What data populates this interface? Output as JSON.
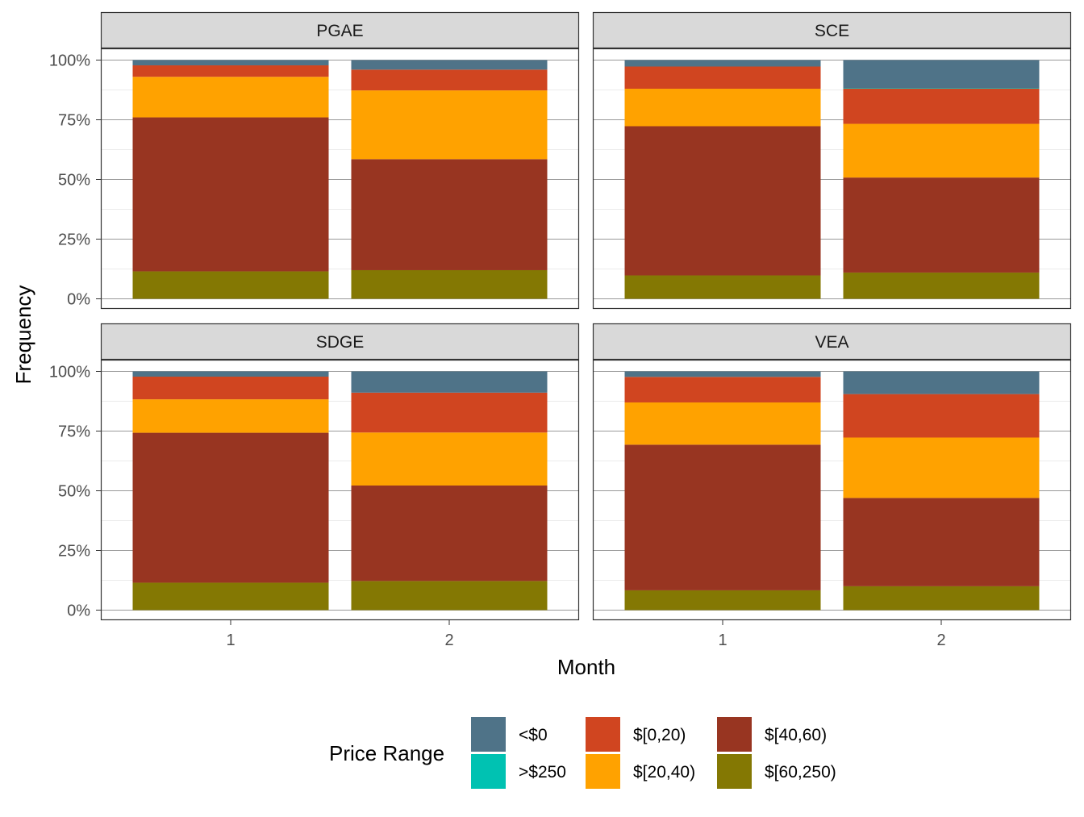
{
  "chart_data": {
    "type": "bar",
    "stacked": true,
    "facet_layout": "2x2 grid",
    "ylabel": "Frequency",
    "xlabel": "Month",
    "ylim": [
      0,
      1
    ],
    "y_ticks": [
      "0%",
      "25%",
      "50%",
      "75%",
      "100%"
    ],
    "y_tick_values": [
      0,
      0.25,
      0.5,
      0.75,
      1
    ],
    "categories": [
      "1",
      "2"
    ],
    "grid": true,
    "legend": {
      "title": "Price Range",
      "placement": "bottom",
      "entries": [
        {
          "label": "<$0",
          "color": "#4f7388"
        },
        {
          "label": ">$250",
          "color": "#00c2b2"
        },
        {
          "label": "$[0,20)",
          "color": "#d04520"
        },
        {
          "label": "$[20,40)",
          "color": "#ffa200"
        },
        {
          "label": "$[40,60)",
          "color": "#983521"
        },
        {
          "label": "$[60,250)",
          "color": "#847803"
        }
      ]
    },
    "stack_order_bottom_to_top": [
      "$[60,250)",
      "$[40,60)",
      "$[20,40)",
      "$[0,20)",
      ">$250",
      "<$0"
    ],
    "panels": [
      {
        "name": "PGAE",
        "bars": [
          {
            "x": "1",
            "values": {
              "$[60,250)": 0.115,
              "$[40,60)": 0.645,
              "$[20,40)": 0.17,
              "$[0,20)": 0.048,
              ">$250": 0.0,
              "<$0": 0.022
            }
          },
          {
            "x": "2",
            "values": {
              "$[60,250)": 0.12,
              "$[40,60)": 0.465,
              "$[20,40)": 0.288,
              "$[0,20)": 0.087,
              ">$250": 0.0,
              "<$0": 0.04
            }
          }
        ]
      },
      {
        "name": "SCE",
        "bars": [
          {
            "x": "1",
            "values": {
              "$[60,250)": 0.098,
              "$[40,60)": 0.625,
              "$[20,40)": 0.157,
              "$[0,20)": 0.093,
              ">$250": 0.0,
              "<$0": 0.027
            }
          },
          {
            "x": "2",
            "values": {
              "$[60,250)": 0.11,
              "$[40,60)": 0.398,
              "$[20,40)": 0.225,
              "$[0,20)": 0.147,
              ">$250": 0.002,
              "<$0": 0.118
            }
          }
        ]
      },
      {
        "name": "SDGE",
        "bars": [
          {
            "x": "1",
            "values": {
              "$[60,250)": 0.115,
              "$[40,60)": 0.628,
              "$[20,40)": 0.14,
              "$[0,20)": 0.095,
              ">$250": 0.0,
              "<$0": 0.022
            }
          },
          {
            "x": "2",
            "values": {
              "$[60,250)": 0.122,
              "$[40,60)": 0.4,
              "$[20,40)": 0.222,
              "$[0,20)": 0.167,
              ">$250": 0.0,
              "<$0": 0.089
            }
          }
        ]
      },
      {
        "name": "VEA",
        "bars": [
          {
            "x": "1",
            "values": {
              "$[60,250)": 0.083,
              "$[40,60)": 0.61,
              "$[20,40)": 0.177,
              "$[0,20)": 0.107,
              ">$250": 0.0,
              "<$0": 0.023
            }
          },
          {
            "x": "2",
            "values": {
              "$[60,250)": 0.1,
              "$[40,60)": 0.37,
              "$[20,40)": 0.253,
              "$[0,20)": 0.182,
              ">$250": 0.0,
              "<$0": 0.095
            }
          }
        ]
      }
    ]
  }
}
